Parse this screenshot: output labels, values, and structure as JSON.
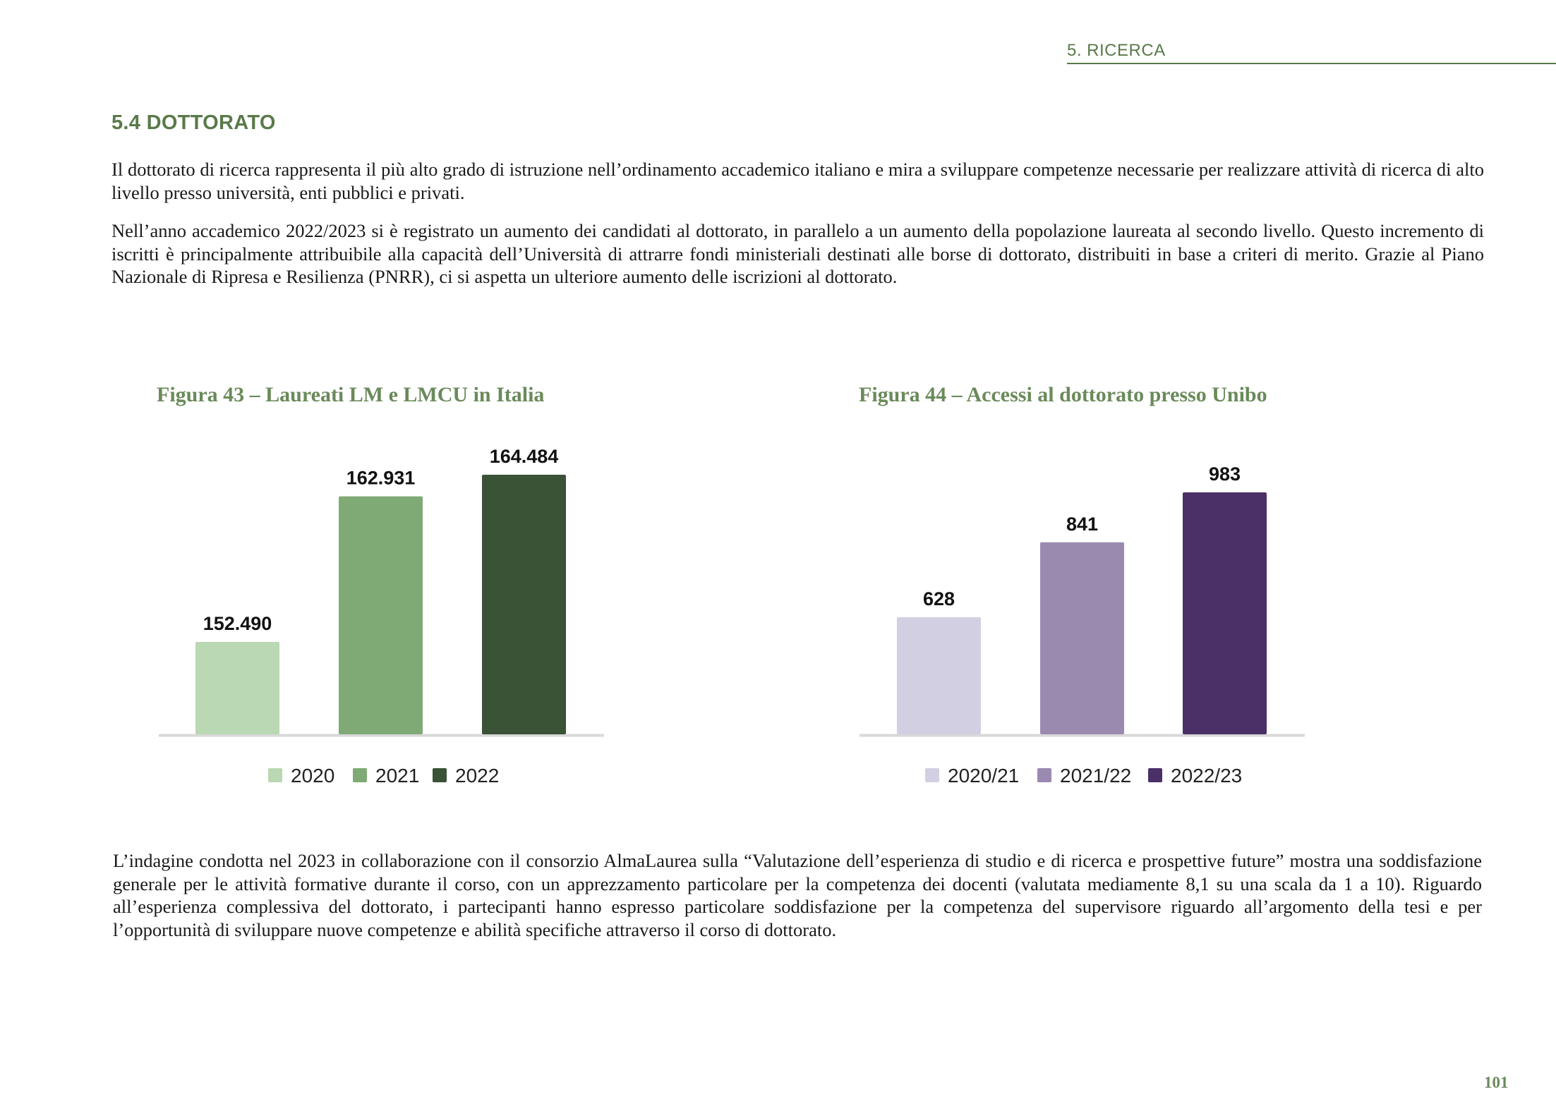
{
  "header": {
    "section": "5. RICERCA"
  },
  "section": {
    "title": "5.4 DOTTORATO"
  },
  "paragraphs": {
    "p1": "Il dottorato di ricerca rappresenta il più alto grado di istruzione nell’ordinamento accademico italiano e mira a sviluppare competenze necessarie per realizzare attività di ricerca di alto livello presso università, enti pubblici e privati.",
    "p2": "Nell’anno accademico 2022/2023 si è registrato un aumento dei candidati al dottorato, in parallelo a un aumento della popolazione laureata al secondo livello. Questo incremento di iscritti è principalmente attribuibile alla capacità dell’Università di attrarre fondi ministeriali destinati alle borse di dottorato, distribuiti in base a criteri di merito. Grazie al Piano Nazionale di Ripresa e Resilienza (PNRR), ci si aspetta un ulteriore aumento delle iscrizioni al dottorato.",
    "p3": "L’indagine condotta nel 2023 in collaborazione con il consorzio AlmaLaurea sulla “Valutazione dell’esperienza di studio e di ricerca e prospettive future” mostra una soddisfazione generale per le attività formative durante il corso, con un apprezzamento particolare per la competenza dei docenti (valutata mediamente 8,1 su una scala da 1 a 10). Riguardo all’esperienza complessiva del dottorato, i partecipanti hanno espresso particolare soddisfazione per la competenza del supervisore riguardo all’argomento della tesi e per l’opportunità di sviluppare nuove competenze e abilità specifiche attraverso il corso di dottorato."
  },
  "chart_data": [
    {
      "type": "bar",
      "title": "Figura 43 – Laureati LM e LMCU in Italia",
      "categories": [
        "2020",
        "2021",
        "2022"
      ],
      "values": [
        152490,
        162931,
        164484
      ],
      "value_labels": [
        "152.490",
        "162.931",
        "164.484"
      ],
      "colors": [
        "#b9d8b3",
        "#7faa75",
        "#3a5236"
      ],
      "legend": "bottom-center",
      "grid": false
    },
    {
      "type": "bar",
      "title": "Figura 44 – Accessi al dottorato presso Unibo",
      "categories": [
        "2020/21",
        "2021/22",
        "2022/23"
      ],
      "values": [
        628,
        841,
        983
      ],
      "value_labels": [
        "628",
        "841",
        "983"
      ],
      "colors": [
        "#d3cfe2",
        "#9b8ab0",
        "#4b3068"
      ],
      "legend": "bottom-center",
      "grid": false
    }
  ],
  "page": {
    "number": "101"
  },
  "colors": {
    "accent": "#5a7a4a",
    "axis": "#d9d9d9"
  }
}
